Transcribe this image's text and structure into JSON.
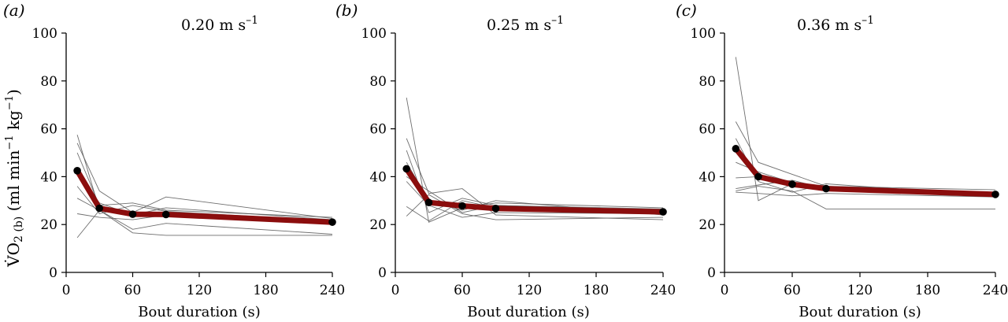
{
  "figure": {
    "y_axis_title": {
      "prefix": "V̇O",
      "sub1": "2 (b)",
      "mid": " (ml min",
      "sup1": "−1",
      "mid2": " kg",
      "sup2": "−1",
      "suffix": ")"
    }
  },
  "colors": {
    "mean": "#8b0d0d",
    "individual": "#555555",
    "points": "#000000"
  },
  "chart_data": [
    {
      "type": "line",
      "panel": "(a)",
      "title": {
        "base": "0.20 m s",
        "sup": "–1"
      },
      "xlabel": "Bout duration (s)",
      "ylabel": "V̇O2 (b) (ml min−1 kg−1)",
      "xlim": [
        0,
        240
      ],
      "ylim": [
        0,
        100
      ],
      "xticks": [
        0,
        60,
        120,
        180,
        240
      ],
      "yticks": [
        0,
        20,
        40,
        60,
        80,
        100
      ],
      "x": [
        10,
        30,
        60,
        90,
        240
      ],
      "mean": {
        "name": "mean",
        "values": [
          42.5,
          26.8,
          24.3,
          24.2,
          21.0
        ]
      },
      "individuals": [
        [
          57.5,
          26.0,
          25.5,
          23.5,
          21.5
        ],
        [
          54.0,
          34.0,
          25.0,
          31.5,
          22.5
        ],
        [
          50.0,
          28.0,
          29.0,
          26.0,
          23.0
        ],
        [
          42.0,
          29.0,
          24.0,
          27.0,
          22.0
        ],
        [
          36.0,
          24.5,
          28.0,
          25.5,
          21.5
        ],
        [
          31.0,
          26.0,
          18.0,
          20.5,
          16.0
        ],
        [
          24.5,
          23.0,
          22.0,
          24.0,
          20.5
        ],
        [
          14.5,
          26.0,
          16.5,
          15.5,
          15.5
        ]
      ]
    },
    {
      "type": "line",
      "panel": "(b)",
      "title": {
        "base": "0.25 m s",
        "sup": "–1"
      },
      "xlabel": "Bout duration (s)",
      "ylabel": "",
      "xlim": [
        0,
        240
      ],
      "ylim": [
        0,
        100
      ],
      "xticks": [
        0,
        60,
        120,
        180,
        240
      ],
      "yticks": [
        0,
        20,
        40,
        60,
        80,
        100
      ],
      "x": [
        10,
        30,
        60,
        90,
        240
      ],
      "mean": {
        "name": "mean",
        "values": [
          43.3,
          29.2,
          27.8,
          26.7,
          25.3
        ]
      },
      "individuals": [
        [
          73.0,
          21.0,
          27.0,
          29.0,
          27.0
        ],
        [
          56.0,
          33.0,
          35.0,
          24.0,
          22.0
        ],
        [
          51.0,
          25.0,
          31.0,
          28.0,
          26.5
        ],
        [
          46.0,
          30.0,
          26.0,
          30.0,
          24.0
        ],
        [
          40.0,
          34.0,
          25.0,
          28.0,
          25.5
        ],
        [
          38.0,
          28.0,
          23.0,
          25.0,
          24.5
        ],
        [
          27.5,
          21.5,
          30.0,
          27.0,
          26.0
        ],
        [
          23.5,
          32.5,
          24.5,
          22.0,
          23.0
        ]
      ]
    },
    {
      "type": "line",
      "panel": "(c)",
      "title": {
        "base": "0.36 m s",
        "sup": "–1"
      },
      "xlabel": "Bout duration (s)",
      "ylabel": "",
      "xlim": [
        0,
        240
      ],
      "ylim": [
        0,
        100
      ],
      "xticks": [
        0,
        60,
        120,
        180,
        240
      ],
      "yticks": [
        0,
        20,
        40,
        60,
        80,
        100
      ],
      "x": [
        10,
        30,
        60,
        90,
        240
      ],
      "mean": {
        "name": "mean",
        "values": [
          51.7,
          40.0,
          36.8,
          35.0,
          32.6
        ]
      },
      "individuals": [
        [
          90.0,
          30.0,
          37.0,
          35.0,
          33.0
        ],
        [
          63.0,
          46.0,
          41.0,
          36.0,
          34.5
        ],
        [
          56.0,
          38.0,
          33.5,
          37.0,
          32.0
        ],
        [
          46.0,
          42.0,
          37.5,
          34.0,
          33.5
        ],
        [
          39.5,
          40.0,
          37.0,
          36.0,
          32.5
        ],
        [
          35.0,
          36.5,
          38.5,
          35.0,
          33.0
        ],
        [
          34.0,
          36.0,
          34.0,
          26.5,
          26.5
        ],
        [
          33.5,
          33.0,
          32.0,
          33.0,
          31.5
        ]
      ]
    }
  ]
}
